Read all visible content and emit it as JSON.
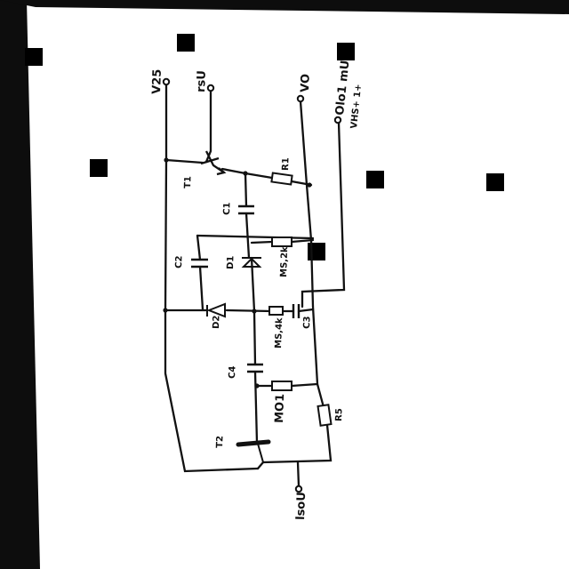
{
  "terminals": {
    "v25": "V25",
    "rsu": "rsU",
    "vo": "VO",
    "osc": "Olo1 mU",
    "osc_note": "VHS+ 1+",
    "out": "lsoU"
  },
  "components": {
    "t1": "T1",
    "r1": "R1",
    "c1": "C1",
    "c2": "C2",
    "d1": "D1",
    "r2": "R2",
    "r2_val": "MS,2k",
    "d2": "D2",
    "c3": "C3",
    "r3_val": "MS,4k",
    "c4": "C4",
    "r4_val": "MO1",
    "r5": "R5",
    "t2": "T2"
  },
  "colors": {
    "ink": "#111111",
    "paper": "#ffffff",
    "edge": "#0d0d0d"
  }
}
